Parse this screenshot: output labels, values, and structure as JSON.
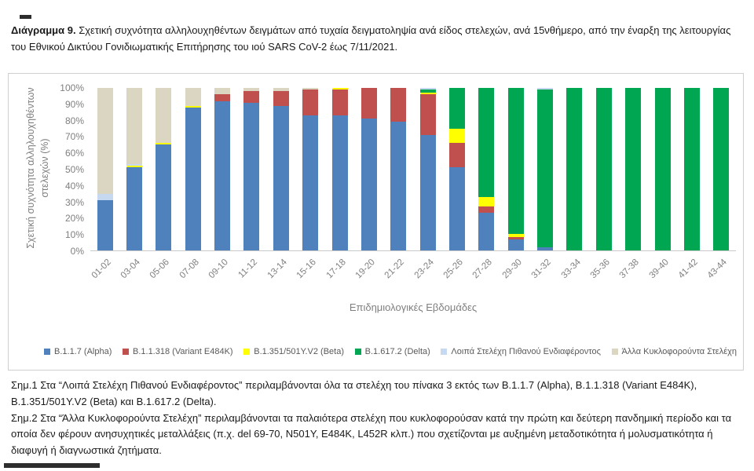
{
  "caption": {
    "prefix": "Διάγραμμα 9.",
    "text": " Σχετική συχνότητα αλληλουχηθέντων δειγμάτων από τυχαία δειγματοληψία ανά είδος στελεχών, ανά 15νθήμερο, από την έναρξη της λειτουργίας του Εθνικού Δικτύου Γονιδιωματικής Επιτήρησης του ιού SARS CoV-2 έως 7/11/2021."
  },
  "chart_data": {
    "type": "bar",
    "subtype": "stacked-100-percent",
    "title": "",
    "xlabel": "Επιδημιολογικές Εβδομάδες",
    "ylabel": "Σχετική συχνότητα αλληλουχηθέντων στελεχών (%)",
    "ylabel_lines": [
      "Σχετική συχνότητα αλληλουχηθέντων",
      "στελεχών (%)"
    ],
    "ylim": [
      0,
      100
    ],
    "y_ticks": [
      "100%",
      "90%",
      "80%",
      "70%",
      "60%",
      "50%",
      "40%",
      "30%",
      "20%",
      "10%",
      "0%"
    ],
    "grid": false,
    "legend_position": "bottom",
    "categories": [
      "01-02",
      "03-04",
      "05-06",
      "07-08",
      "09-10",
      "11-12",
      "13-14",
      "15-16",
      "17-18",
      "19-20",
      "21-22",
      "23-24",
      "25-26",
      "27-28",
      "29-30",
      "31-32",
      "33-34",
      "35-36",
      "37-38",
      "39-40",
      "41-42",
      "43-44"
    ],
    "series": [
      {
        "name": "B.1.1.7 (Alpha)",
        "color": "#4F81BD",
        "values": [
          31,
          51,
          65,
          88,
          92,
          91,
          89,
          83,
          83,
          81,
          79,
          71,
          51,
          23,
          7,
          2,
          0,
          0,
          0,
          0,
          0,
          0
        ]
      },
      {
        "name": "B.1.1.318 (Variant E484K)",
        "color": "#C0504D",
        "values": [
          0,
          0,
          0,
          0,
          4,
          7,
          9,
          16,
          16,
          19,
          21,
          25,
          15,
          4,
          1,
          0,
          0,
          0,
          0,
          0,
          0,
          0
        ]
      },
      {
        "name": "B.1.351/501Y.V2 (Beta)",
        "color": "#FFFF00",
        "values": [
          0,
          1,
          1,
          1,
          0,
          0,
          0,
          0,
          1,
          0,
          0,
          1,
          9,
          6,
          2,
          0,
          0,
          0,
          0,
          0,
          0,
          0
        ]
      },
      {
        "name": "B.1.617.2 (Delta)",
        "color": "#00A651",
        "values": [
          0,
          0,
          0,
          0,
          0,
          0,
          0,
          0,
          0,
          0,
          0,
          2,
          25,
          67,
          90,
          97,
          100,
          100,
          100,
          100,
          100,
          100
        ]
      },
      {
        "name": "Λοιπά Στελέχη Πιθανού Ενδιαφέροντος",
        "color": "#C6D9F1",
        "values": [
          4,
          1,
          0,
          0,
          0,
          0,
          0,
          0,
          0,
          0,
          0,
          1,
          0,
          0,
          0,
          1,
          0,
          0,
          0,
          0,
          0,
          0
        ]
      },
      {
        "name": "Άλλα Κυκλοφορούντα Στελέχη",
        "color": "#DBD6C1",
        "values": [
          65,
          47,
          34,
          11,
          4,
          2,
          2,
          1,
          0,
          0,
          0,
          0,
          0,
          0,
          0,
          0,
          0,
          0,
          0,
          0,
          0,
          0
        ]
      }
    ]
  },
  "notes": {
    "note1": "Σημ.1 Στα “Λοιπά Στελέχη Πιθανού Ενδιαφέροντος” περιλαμβάνονται όλα τα στελέχη του πίνακα 3 εκτός των B.1.1.7 (Alpha), B.1.1.318 (Variant E484K), B.1.351/501Y.V2 (Beta) και B.1.617.2 (Delta).",
    "note2": "Σημ.2 Στα “Άλλα Κυκλοφορούντα Στελέχη” περιλαμβάνονται τα παλαιότερα στελέχη που κυκλοφορούσαν κατά την πρώτη και δεύτερη πανδημική περίοδο και τα οποία δεν φέρουν ανησυχητικές μεταλλάξεις (π.χ. del 69-70, N501Y, E484K, L452R κλπ.) που σχετίζονται με αυξημένη μεταδοτικότητα ή μολυσματικότητα ή διαφυγή ή διαγνωστικά ζητήματα."
  }
}
